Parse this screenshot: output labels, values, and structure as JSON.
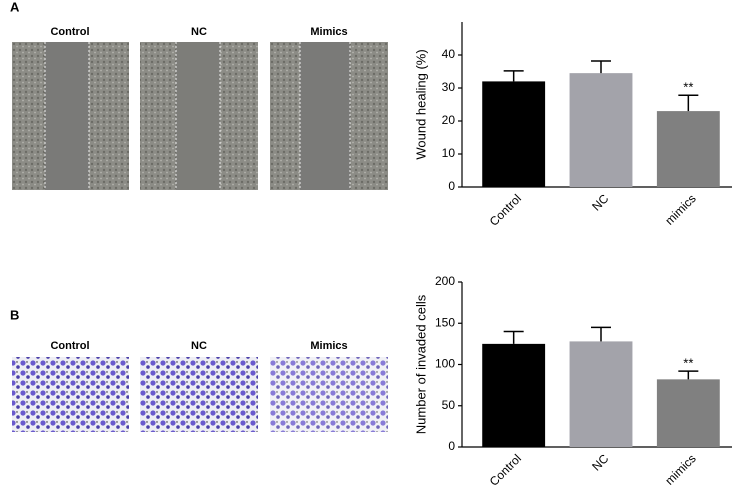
{
  "panel_labels": [
    "A",
    "B"
  ],
  "image_labels": {
    "A": [
      "Control",
      "NC",
      "Mimics"
    ],
    "B": [
      "Control",
      "NC",
      "Mimics"
    ]
  },
  "chart_data": [
    {
      "type": "bar",
      "ylabel": "Wound healing (%)",
      "categories": [
        "Control",
        "NC",
        "mimics"
      ],
      "values": [
        32,
        34.5,
        23
      ],
      "errors": [
        3.2,
        3.7,
        4.8
      ],
      "colors": [
        "#000000",
        "#a3a3aa",
        "#808080"
      ],
      "annotation": "**",
      "ylim": [
        0,
        50
      ],
      "yticks": [
        0,
        10,
        20,
        30,
        40
      ]
    },
    {
      "type": "bar",
      "ylabel": "Number of invaded cells",
      "categories": [
        "Control",
        "NC",
        "mimics"
      ],
      "values": [
        125,
        128,
        82
      ],
      "errors": [
        15,
        17,
        10
      ],
      "colors": [
        "#000000",
        "#a3a3aa",
        "#808080"
      ],
      "annotation": "**",
      "ylim": [
        0,
        200
      ],
      "yticks": [
        0,
        50,
        100,
        150,
        200
      ]
    }
  ]
}
